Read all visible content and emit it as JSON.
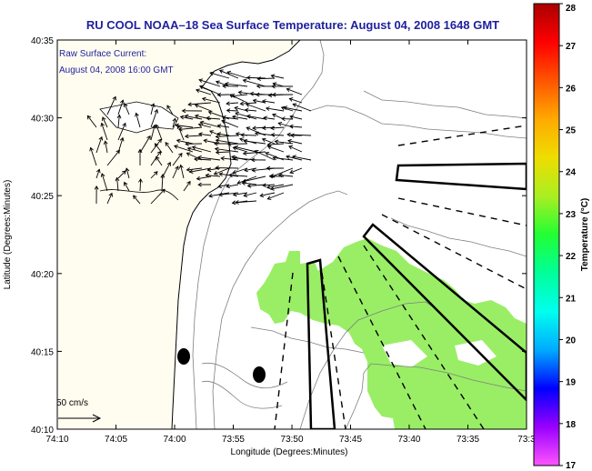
{
  "chart_data": {
    "type": "heatmap",
    "title": "RU COOL  NOAA–18  Sea Surface Temperature:  August 04, 2008 1648 GMT",
    "annotation_lines": [
      "Raw Surface Current:",
      "August 04, 2008 16:00 GMT"
    ],
    "xlabel": "Longitude (Degrees:Minutes)",
    "ylabel": "Latitude (Degrees:Minutes)",
    "x_ticks": [
      "74:10",
      "74:05",
      "74:00",
      "73:55",
      "73:50",
      "73:45",
      "73:40",
      "73:35",
      "73:3"
    ],
    "x_tick_values": [
      -74.1667,
      -74.0833,
      -74.0,
      -73.9167,
      -73.8333,
      -73.75,
      -73.6667,
      -73.5833,
      -73.5
    ],
    "y_ticks": [
      "40:10",
      "40:15",
      "40:20",
      "40:25",
      "40:30",
      "40:35"
    ],
    "y_tick_values": [
      40.1667,
      40.25,
      40.3333,
      40.4167,
      40.5,
      40.5833
    ],
    "xlim": [
      -74.1667,
      -73.5
    ],
    "ylim": [
      40.1667,
      40.5833
    ],
    "scale_label": "50 cm/s",
    "colorbar": {
      "label": "Temperature (°C)",
      "min": 17,
      "max": 28,
      "ticks": [
        "17",
        "18",
        "19",
        "20",
        "21",
        "22",
        "23",
        "24",
        "25",
        "26",
        "27",
        "28"
      ],
      "stops": [
        "#ff55ff",
        "#9900ff",
        "#0000ff",
        "#00aaff",
        "#00ffee",
        "#00ff99",
        "#22ff33",
        "#aaee22",
        "#eedd00",
        "#ffaa00",
        "#ff5500",
        "#ff0000",
        "#aa0000"
      ]
    },
    "sst_field_celsius": 22.6,
    "sst_field_color": "#99ee66",
    "land_color": "#fffdf0"
  }
}
